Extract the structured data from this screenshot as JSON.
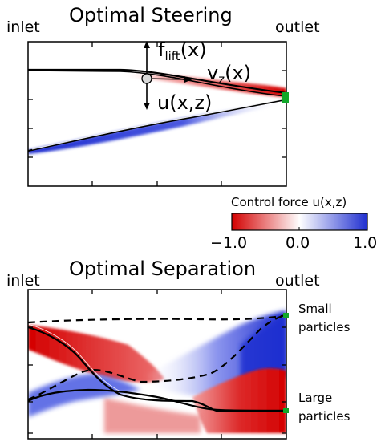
{
  "colors": {
    "negative": "#d40000",
    "positive": "#1f2fd0",
    "outlet_marker": "#11a82a"
  },
  "top_panel": {
    "title": "Optimal Steering",
    "inlet_label": "inlet",
    "outlet_label": "outlet",
    "flift_label": "f",
    "flift_sub": "lift",
    "flift_arg": "(x)",
    "vz_label": "v",
    "vz_sub": "z",
    "vz_arg": "(x)",
    "u_label": "u(x,z)"
  },
  "colorbar": {
    "label": "Control force u(x,z)",
    "ticks": [
      "−1.0",
      "0.0",
      "1.0"
    ],
    "range": [
      -1.0,
      1.0
    ]
  },
  "bottom_panel": {
    "title": "Optimal Separation",
    "inlet_label": "inlet",
    "outlet_label": "outlet",
    "small_label_1": "Small",
    "small_label_2": "particles",
    "large_label_1": "Large",
    "large_label_2": "particles"
  }
}
